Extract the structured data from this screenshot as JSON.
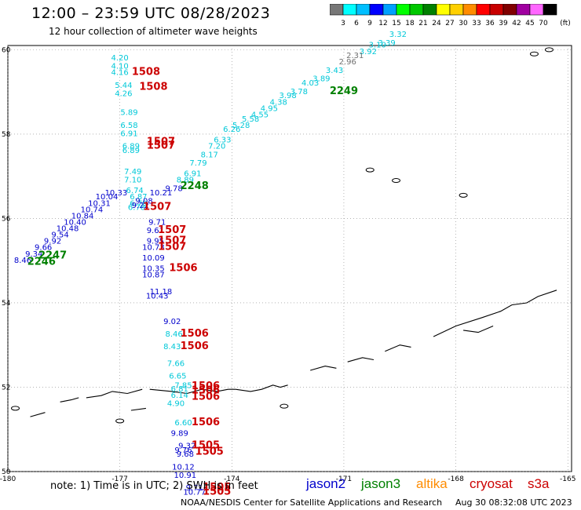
{
  "title": "12:00 – 23:59 UTC 08/28/2023",
  "subtitle": "12 hour collection of altimeter wave heights",
  "scale": {
    "unit": "(ft)",
    "ticks": [
      "3",
      "6",
      "9",
      "12",
      "15",
      "18",
      "21",
      "24",
      "27",
      "30",
      "33",
      "36",
      "39",
      "42",
      "45",
      "70"
    ],
    "colors": [
      "#777777",
      "#00ffff",
      "#00bfff",
      "#0000ff",
      "#00a0ff",
      "#00ff00",
      "#00c800",
      "#008000",
      "#ffff00",
      "#ffd000",
      "#ff8c00",
      "#ff0000",
      "#c80000",
      "#800000",
      "#a000a0",
      "#ff66ff",
      "#000000"
    ]
  },
  "axes": {
    "x_ticks": [
      "-180",
      "-177",
      "-174",
      "-171",
      "-168",
      "-165"
    ],
    "y_ticks": [
      "60",
      "58",
      "56",
      "54",
      "52",
      "50"
    ]
  },
  "sat_colors": {
    "jason2": "#0000cc",
    "jason3": "#008000",
    "altika": "#ff8c00",
    "cryosat": "#cc0000",
    "s3a": "#cc0000",
    "cyan": "#00c8d8",
    "gray": "#707070"
  },
  "tracks": [
    {
      "color": "cyan",
      "points": [
        [
          "4.20",
          -177.0,
          59.75
        ],
        [
          "4.10",
          -177.0,
          59.55
        ],
        [
          "4.16",
          -177.0,
          59.4
        ],
        [
          "5.44",
          -176.9,
          59.1
        ],
        [
          "4.26",
          -176.9,
          58.9
        ],
        [
          "5.89",
          -176.75,
          58.45
        ],
        [
          "6.58",
          -176.75,
          58.15
        ],
        [
          "6.91",
          -176.75,
          57.95
        ],
        [
          "6.89",
          -176.7,
          57.65
        ],
        [
          "6.89",
          -176.7,
          57.55
        ],
        [
          "7.49",
          -176.65,
          57.05
        ],
        [
          "7.10",
          -176.65,
          56.85
        ],
        [
          "6.74",
          -176.6,
          56.6
        ],
        [
          "6.87",
          -176.5,
          56.45
        ],
        [
          "6.79",
          -176.5,
          56.3
        ],
        [
          "6.78",
          -176.55,
          56.2
        ]
      ]
    },
    {
      "color": "jason2",
      "points": [
        [
          "9.08",
          -176.35,
          56.35
        ],
        [
          "9.22",
          -176.45,
          56.25
        ],
        [
          "9.78",
          -175.55,
          56.65
        ],
        [
          "10.21",
          -175.9,
          56.55
        ],
        [
          "9.71",
          -176.0,
          55.85
        ],
        [
          "9.61",
          -176.05,
          55.65
        ],
        [
          "9.95",
          -176.05,
          55.4
        ],
        [
          "10.73",
          -176.1,
          55.25
        ],
        [
          "10.09",
          -176.1,
          55.0
        ],
        [
          "10.35",
          -176.1,
          54.75
        ],
        [
          "10.87",
          -176.1,
          54.6
        ],
        [
          "11.18",
          -175.9,
          54.2
        ],
        [
          "10.43",
          -176.0,
          54.1
        ],
        [
          "9.02",
          -175.6,
          53.5
        ]
      ]
    },
    {
      "color": "cyan",
      "points": [
        [
          "8.46",
          -175.55,
          53.2
        ],
        [
          "8.43",
          -175.6,
          52.9
        ],
        [
          "7.66",
          -175.5,
          52.5
        ],
        [
          "6.65",
          -175.45,
          52.2
        ],
        [
          "7.85",
          -175.3,
          51.98
        ],
        [
          "6.81",
          -175.4,
          51.9
        ],
        [
          "6.14",
          -175.4,
          51.75
        ],
        [
          "4.90",
          -175.5,
          51.55
        ],
        [
          "6.60",
          -175.3,
          51.1
        ]
      ]
    },
    {
      "color": "jason2",
      "points": [
        [
          "9.89",
          -175.4,
          50.85
        ],
        [
          "9.32",
          -175.2,
          50.55
        ],
        [
          "9.76",
          -175.3,
          50.45
        ],
        [
          "9.68",
          -175.25,
          50.35
        ],
        [
          "10.12",
          -175.3,
          50.05
        ],
        [
          "10.91",
          -175.25,
          49.85
        ],
        [
          "9.71",
          -175.0,
          49.55
        ],
        [
          "10.77",
          -175.0,
          49.45
        ]
      ]
    },
    {
      "color": "jason2",
      "points": [
        [
          "8.46",
          -179.6,
          54.95
        ],
        [
          "9.34",
          -179.3,
          55.1
        ],
        [
          "9.66",
          -179.05,
          55.25
        ],
        [
          "9.92",
          -178.8,
          55.4
        ],
        [
          "9.54",
          -178.6,
          55.55
        ],
        [
          "10.48",
          -178.4,
          55.7
        ],
        [
          "10.40",
          -178.2,
          55.85
        ],
        [
          "10.84",
          -178.0,
          56.0
        ],
        [
          "10.74",
          -177.75,
          56.15
        ],
        [
          "10.31",
          -177.55,
          56.3
        ],
        [
          "10.04",
          -177.35,
          56.45
        ],
        [
          "10.33",
          -177.1,
          56.55
        ]
      ]
    },
    {
      "color": "cyan",
      "points": [
        [
          "8.89",
          -175.25,
          56.85
        ],
        [
          "6.91",
          -175.05,
          57.0
        ],
        [
          "7.79",
          -174.9,
          57.25
        ],
        [
          "8.17",
          -174.6,
          57.45
        ],
        [
          "7.20",
          -174.4,
          57.65
        ],
        [
          "6.33",
          -174.25,
          57.8
        ],
        [
          "6.26",
          -174.0,
          58.05
        ],
        [
          "5.28",
          -173.75,
          58.15
        ],
        [
          "5.58",
          -173.5,
          58.3
        ],
        [
          "4.55",
          -173.25,
          58.4
        ],
        [
          "4.95",
          -173.0,
          58.55
        ],
        [
          "4.38",
          -172.75,
          58.7
        ],
        [
          "3.98",
          -172.5,
          58.85
        ],
        [
          "3.78",
          -172.2,
          58.95
        ],
        [
          "4.03",
          -171.9,
          59.15
        ],
        [
          "3.89",
          -171.6,
          59.25
        ],
        [
          "3.43",
          -171.25,
          59.45
        ],
        [
          "3.92",
          -170.35,
          59.9
        ],
        [
          "3.10",
          -170.1,
          60.05
        ],
        [
          "3.39",
          -169.85,
          60.1
        ],
        [
          "3.32",
          -169.55,
          60.3
        ]
      ]
    },
    {
      "color": "gray",
      "points": [
        [
          "2.96",
          -170.9,
          59.65
        ],
        [
          "2.31",
          -170.7,
          59.8
        ]
      ]
    }
  ],
  "time_labels": [
    {
      "text": "1508",
      "color": "cryosat",
      "lon": -176.3,
      "lat": 59.4
    },
    {
      "text": "1508",
      "color": "cryosat",
      "lon": -176.1,
      "lat": 59.05
    },
    {
      "text": "1507",
      "color": "cryosat",
      "lon": -175.9,
      "lat": 57.75
    },
    {
      "text": "1507",
      "color": "cryosat",
      "lon": -175.9,
      "lat": 57.65
    },
    {
      "text": "1507",
      "color": "cryosat",
      "lon": -176.0,
      "lat": 56.2
    },
    {
      "text": "1507",
      "color": "cryosat",
      "lon": -175.6,
      "lat": 55.65
    },
    {
      "text": "1507",
      "color": "cryosat",
      "lon": -175.6,
      "lat": 55.4
    },
    {
      "text": "1507",
      "color": "cryosat",
      "lon": -175.6,
      "lat": 55.25
    },
    {
      "text": "1506",
      "color": "cryosat",
      "lon": -175.3,
      "lat": 54.75
    },
    {
      "text": "1506",
      "color": "cryosat",
      "lon": -175.0,
      "lat": 53.2
    },
    {
      "text": "1506",
      "color": "cryosat",
      "lon": -175.0,
      "lat": 52.9
    },
    {
      "text": "1506",
      "color": "cryosat",
      "lon": -174.7,
      "lat": 51.95
    },
    {
      "text": "1506",
      "color": "cryosat",
      "lon": -174.7,
      "lat": 51.85
    },
    {
      "text": "1506",
      "color": "cryosat",
      "lon": -174.7,
      "lat": 51.7
    },
    {
      "text": "1506",
      "color": "cryosat",
      "lon": -174.7,
      "lat": 51.1
    },
    {
      "text": "1505",
      "color": "cryosat",
      "lon": -174.7,
      "lat": 50.55
    },
    {
      "text": "1505",
      "color": "cryosat",
      "lon": -174.6,
      "lat": 50.4
    },
    {
      "text": "1505",
      "color": "cryosat",
      "lon": -174.4,
      "lat": 49.55
    },
    {
      "text": "1505",
      "color": "cryosat",
      "lon": -174.4,
      "lat": 49.45
    },
    {
      "text": "2249",
      "color": "jason3",
      "lon": -171.0,
      "lat": 58.95
    },
    {
      "text": "2248",
      "color": "jason3",
      "lon": -175.0,
      "lat": 56.7
    },
    {
      "text": "2247",
      "color": "jason3",
      "lon": -178.8,
      "lat": 55.05
    },
    {
      "text": "2246",
      "color": "jason3",
      "lon": -179.1,
      "lat": 54.9
    }
  ],
  "note": "note:  1) Time is in UTC;  2) SWH is in feet",
  "satellites": [
    {
      "name": "jason2",
      "color": "jason2"
    },
    {
      "name": "jason3",
      "color": "jason3"
    },
    {
      "name": "altika",
      "color": "altika"
    },
    {
      "name": "cryosat",
      "color": "cryosat"
    },
    {
      "name": "s3a",
      "color": "s3a"
    }
  ],
  "credit": "NOAA/NESDIS Center for Satellite Applications and Research",
  "stamp": "Aug 30 08:32:08 UTC 2023"
}
